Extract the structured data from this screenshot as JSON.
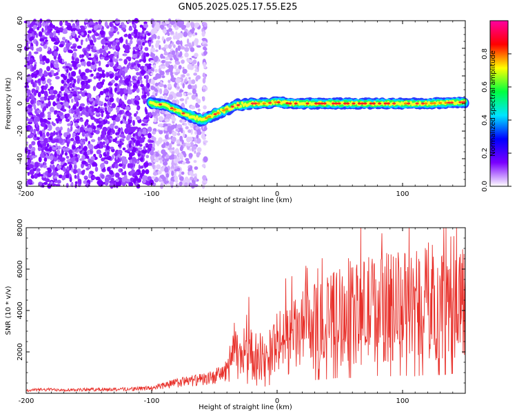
{
  "title": "GN05.2025.025.17.55.E25",
  "chart_data": [
    {
      "type": "heatmap",
      "xlabel": "Height of straight line (km)",
      "ylabel": "Frequency (Hz)",
      "xlim": [
        -200,
        150
      ],
      "ylim": [
        -60,
        60
      ],
      "xticks": [
        "-200",
        "-100",
        "0",
        "100"
      ],
      "yticks": [
        "60",
        "40",
        "20",
        "0",
        "-20",
        "-40",
        "-60"
      ],
      "colorbar": {
        "label": "Normalized spectral amplitude",
        "range": [
          0,
          1
        ],
        "ticks": [
          "0.0",
          "0.2",
          "0.4",
          "0.6",
          "0.8"
        ],
        "colors": [
          "#ffffff",
          "#7a00ff",
          "#0000ff",
          "#00e5ff",
          "#00ff40",
          "#ffff00",
          "#ff0000",
          "#ff00a0"
        ]
      },
      "track": {
        "x": [
          -100,
          -90,
          -80,
          -70,
          -60,
          -55,
          -50,
          -45,
          -40,
          -35,
          -30,
          -20,
          -10,
          0,
          10,
          50,
          100,
          120,
          150
        ],
        "y": [
          0,
          -1,
          -5,
          -9,
          -12,
          -10,
          -8,
          -6,
          -4,
          -2,
          -1,
          0,
          0,
          1,
          0,
          0,
          0,
          0,
          1
        ]
      }
    },
    {
      "type": "line",
      "xlabel": "Height of straight line (km)",
      "ylabel": "SNR (10 * v/v)",
      "xlim": [
        -200,
        150
      ],
      "ylim": [
        0,
        8000
      ],
      "xticks": [
        "-200",
        "-100",
        "0",
        "100"
      ],
      "yticks": [
        "8000",
        "6000",
        "4000",
        "2000"
      ],
      "series": [
        {
          "color": "#e8302a",
          "x": [
            -200,
            -180,
            -160,
            -140,
            -120,
            -100,
            -90,
            -80,
            -70,
            -60,
            -50,
            -40,
            -35,
            -30,
            -25,
            -20,
            -15,
            -10,
            -5,
            0,
            10,
            20,
            30,
            40,
            50,
            60,
            70,
            80,
            90,
            100,
            110,
            120,
            130,
            140,
            150
          ],
          "y": [
            150,
            180,
            170,
            190,
            200,
            250,
            400,
            500,
            600,
            650,
            800,
            1100,
            2200,
            1500,
            2500,
            1800,
            1900,
            1600,
            2100,
            2400,
            2600,
            3000,
            3200,
            3400,
            3800,
            3700,
            4000,
            4200,
            4100,
            4300,
            4100,
            4500,
            4400,
            4700,
            4500
          ]
        }
      ]
    }
  ]
}
